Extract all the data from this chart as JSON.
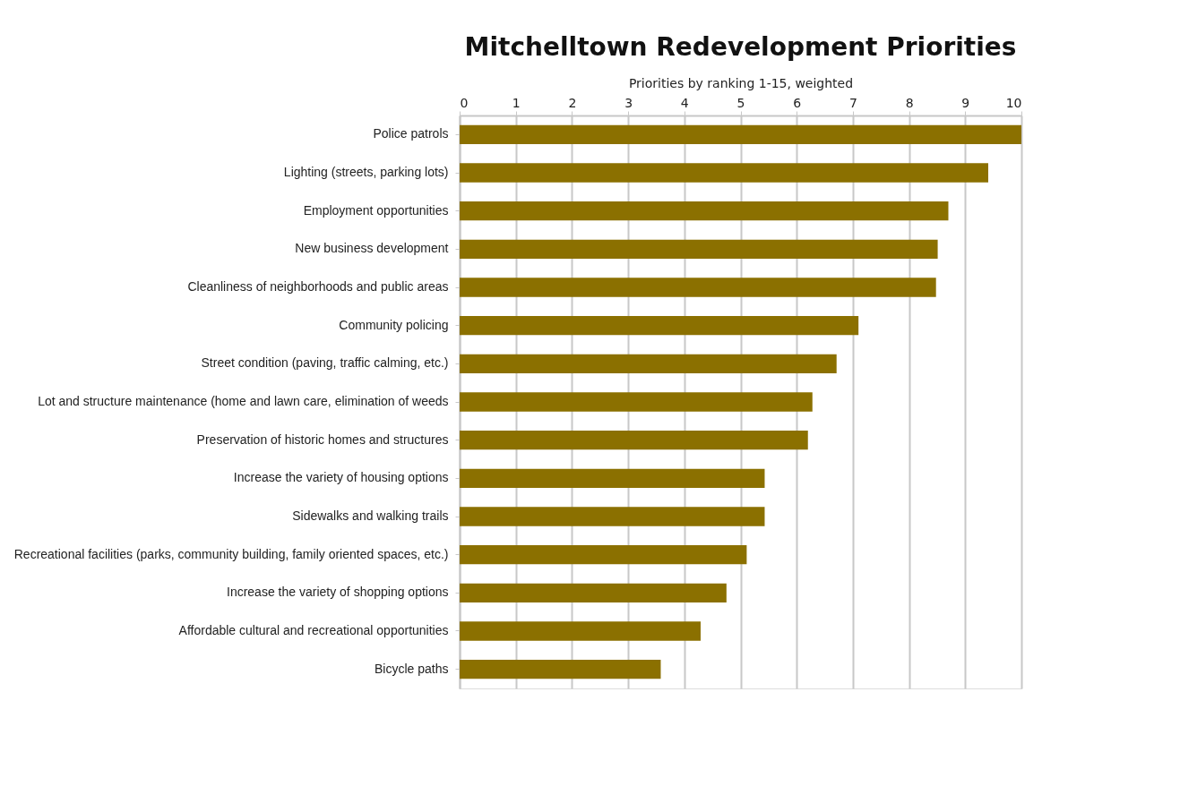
{
  "chart_data": {
    "type": "bar",
    "orientation": "horizontal",
    "title": "Mitchelltown Redevelopment Priorities",
    "xlabel": "Priorities by ranking 1-15, weighted",
    "categories": [
      "Police patrols",
      "Lighting (streets, parking lots)",
      "Employment opportunities",
      "New business development",
      "Cleanliness of neighborhoods and public areas",
      "Community policing",
      "Street condition (paving, traffic calming, etc.)",
      "Lot and structure maintenance (home and lawn care, elimination of weeds",
      "Preservation of historic homes and structures",
      "Increase the variety of housing options",
      "Sidewalks and walking trails",
      "Recreational facilities (parks, community building, family oriented spaces, etc.)",
      "Increase the variety of shopping options",
      "Affordable cultural and recreational opportunities",
      "Bicycle paths"
    ],
    "values": [
      10.0,
      9.41,
      8.7,
      8.51,
      8.48,
      7.1,
      6.71,
      6.28,
      6.2,
      5.43,
      5.43,
      5.11,
      4.75,
      4.29,
      3.58
    ],
    "color": "#8b7000",
    "xlim": [
      0,
      10
    ],
    "xticks": [
      0,
      1,
      2,
      3,
      4,
      5,
      6,
      7,
      8,
      9,
      10
    ],
    "grid": "x"
  }
}
